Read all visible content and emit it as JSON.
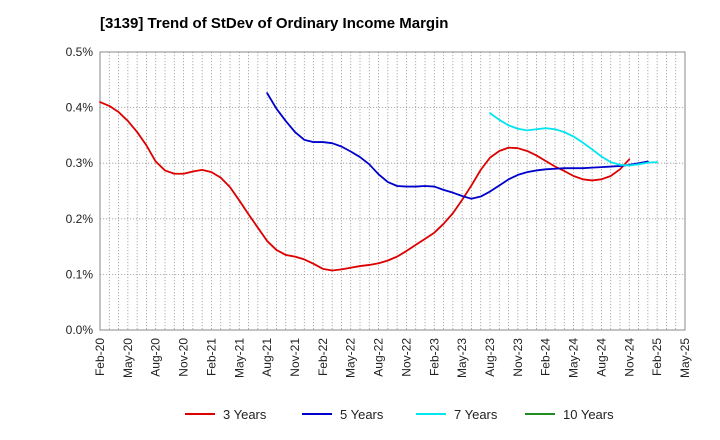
{
  "chart_data": {
    "type": "line",
    "title": "[3139]  Trend of StDev of Ordinary Income Margin",
    "xlabel": "",
    "ylabel": "",
    "ylim": [
      0,
      0.5
    ],
    "y_ticks": [
      "0.0%",
      "0.1%",
      "0.2%",
      "0.3%",
      "0.4%",
      "0.5%"
    ],
    "y_tick_values": [
      0,
      0.1,
      0.2,
      0.3,
      0.4,
      0.5
    ],
    "x_ticks": [
      "Feb-20",
      "May-20",
      "Aug-20",
      "Nov-20",
      "Feb-21",
      "May-21",
      "Aug-21",
      "Nov-21",
      "Feb-22",
      "May-22",
      "Aug-22",
      "Nov-22",
      "Feb-23",
      "May-23",
      "Aug-23",
      "Nov-23",
      "Feb-24",
      "May-24",
      "Aug-24",
      "Nov-24",
      "Feb-25",
      "May-25"
    ],
    "grid": true,
    "legend_position": "bottom",
    "series": [
      {
        "name": "3 Years",
        "color": "#dd0000",
        "start": "2020-02",
        "values": [
          0.41,
          0.403,
          0.392,
          0.376,
          0.356,
          0.332,
          0.303,
          0.287,
          0.281,
          0.281,
          0.285,
          0.288,
          0.284,
          0.274,
          0.257,
          0.233,
          0.208,
          0.184,
          0.16,
          0.144,
          0.135,
          0.132,
          0.127,
          0.119,
          0.11,
          0.107,
          0.109,
          0.112,
          0.115,
          0.117,
          0.12,
          0.125,
          0.132,
          0.142,
          0.153,
          0.164,
          0.175,
          0.191,
          0.21,
          0.234,
          0.26,
          0.288,
          0.31,
          0.322,
          0.328,
          0.327,
          0.322,
          0.314,
          0.304,
          0.294,
          0.286,
          0.277,
          0.271,
          0.269,
          0.271,
          0.277,
          0.289,
          0.307
        ]
      },
      {
        "name": "5 Years",
        "color": "#0000cc",
        "start": "2021-08",
        "values": [
          0.426,
          0.398,
          0.376,
          0.356,
          0.342,
          0.338,
          0.338,
          0.336,
          0.33,
          0.321,
          0.311,
          0.298,
          0.28,
          0.266,
          0.259,
          0.258,
          0.258,
          0.259,
          0.258,
          0.252,
          0.247,
          0.241,
          0.236,
          0.24,
          0.249,
          0.26,
          0.271,
          0.279,
          0.284,
          0.287,
          0.289,
          0.29,
          0.291,
          0.291,
          0.291,
          0.292,
          0.293,
          0.294,
          0.295,
          0.297,
          0.3,
          0.303
        ]
      },
      {
        "name": "7 Years",
        "color": "#00e5ee",
        "start": "2023-08",
        "values": [
          0.39,
          0.378,
          0.368,
          0.362,
          0.359,
          0.361,
          0.363,
          0.361,
          0.356,
          0.348,
          0.337,
          0.325,
          0.312,
          0.302,
          0.297,
          0.296,
          0.298,
          0.301,
          0.302
        ]
      },
      {
        "name": "10 Years",
        "color": "#228b22",
        "start": null,
        "values": []
      }
    ]
  }
}
